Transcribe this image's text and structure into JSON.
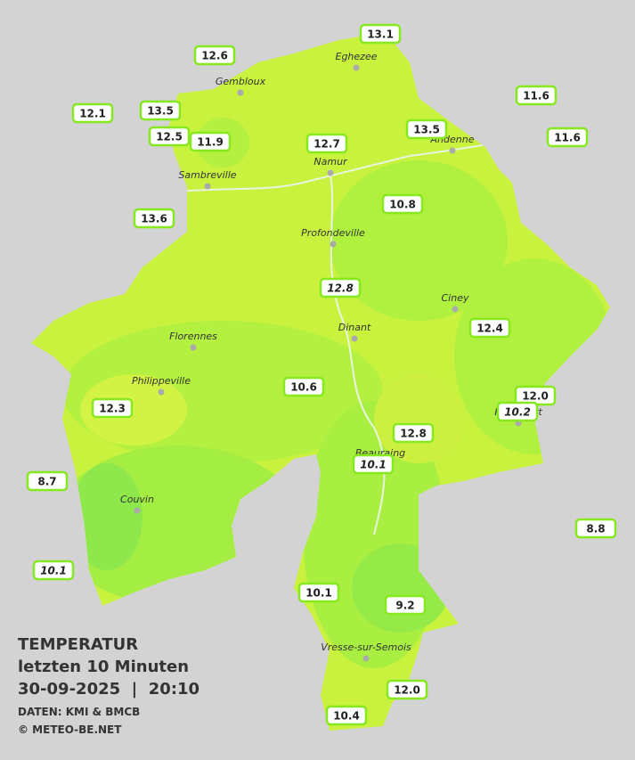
{
  "map": {
    "title": "TEMPERATUR",
    "subtitle": "letzten 10 Minuten",
    "timestamp": "30-09-2025  |  20:10",
    "source": "DATEN: KMI & BMCB",
    "copyright": "© METEO-BE.NET",
    "cities": [
      {
        "name": "Eghezee"
      },
      {
        "name": "Gembloux"
      },
      {
        "name": "Andenne"
      },
      {
        "name": "Namur"
      },
      {
        "name": "Sambreville"
      },
      {
        "name": "Profondeville"
      },
      {
        "name": "Ciney"
      },
      {
        "name": "Dinant"
      },
      {
        "name": "Florennes"
      },
      {
        "name": "Philippeville"
      },
      {
        "name": "Rochefort"
      },
      {
        "name": "Beauraing"
      },
      {
        "name": "Couvin"
      },
      {
        "name": "Vresse-sur-Semois"
      }
    ],
    "stations": [
      {
        "value": "13.1",
        "italic": false
      },
      {
        "value": "12.6",
        "italic": false
      },
      {
        "value": "11.6",
        "italic": false
      },
      {
        "value": "12.1",
        "italic": false
      },
      {
        "value": "13.5",
        "italic": false
      },
      {
        "value": "12.5",
        "italic": false
      },
      {
        "value": "11.9",
        "italic": false
      },
      {
        "value": "12.7",
        "italic": false
      },
      {
        "value": "13.5",
        "italic": false
      },
      {
        "value": "11.6",
        "italic": false
      },
      {
        "value": "10.8",
        "italic": false
      },
      {
        "value": "13.6",
        "italic": false
      },
      {
        "value": "12.8",
        "italic": true
      },
      {
        "value": "12.4",
        "italic": false
      },
      {
        "value": "10.6",
        "italic": false
      },
      {
        "value": "12.0",
        "italic": false
      },
      {
        "value": "10.2",
        "italic": true
      },
      {
        "value": "12.3",
        "italic": false
      },
      {
        "value": "12.8",
        "italic": false
      },
      {
        "value": "10.1",
        "italic": true
      },
      {
        "value": "8.7",
        "italic": false
      },
      {
        "value": "8.8",
        "italic": false
      },
      {
        "value": "10.1",
        "italic": true
      },
      {
        "value": "10.1",
        "italic": false
      },
      {
        "value": "9.2",
        "italic": false
      },
      {
        "value": "12.0",
        "italic": false
      },
      {
        "value": "10.4",
        "italic": false
      }
    ]
  }
}
